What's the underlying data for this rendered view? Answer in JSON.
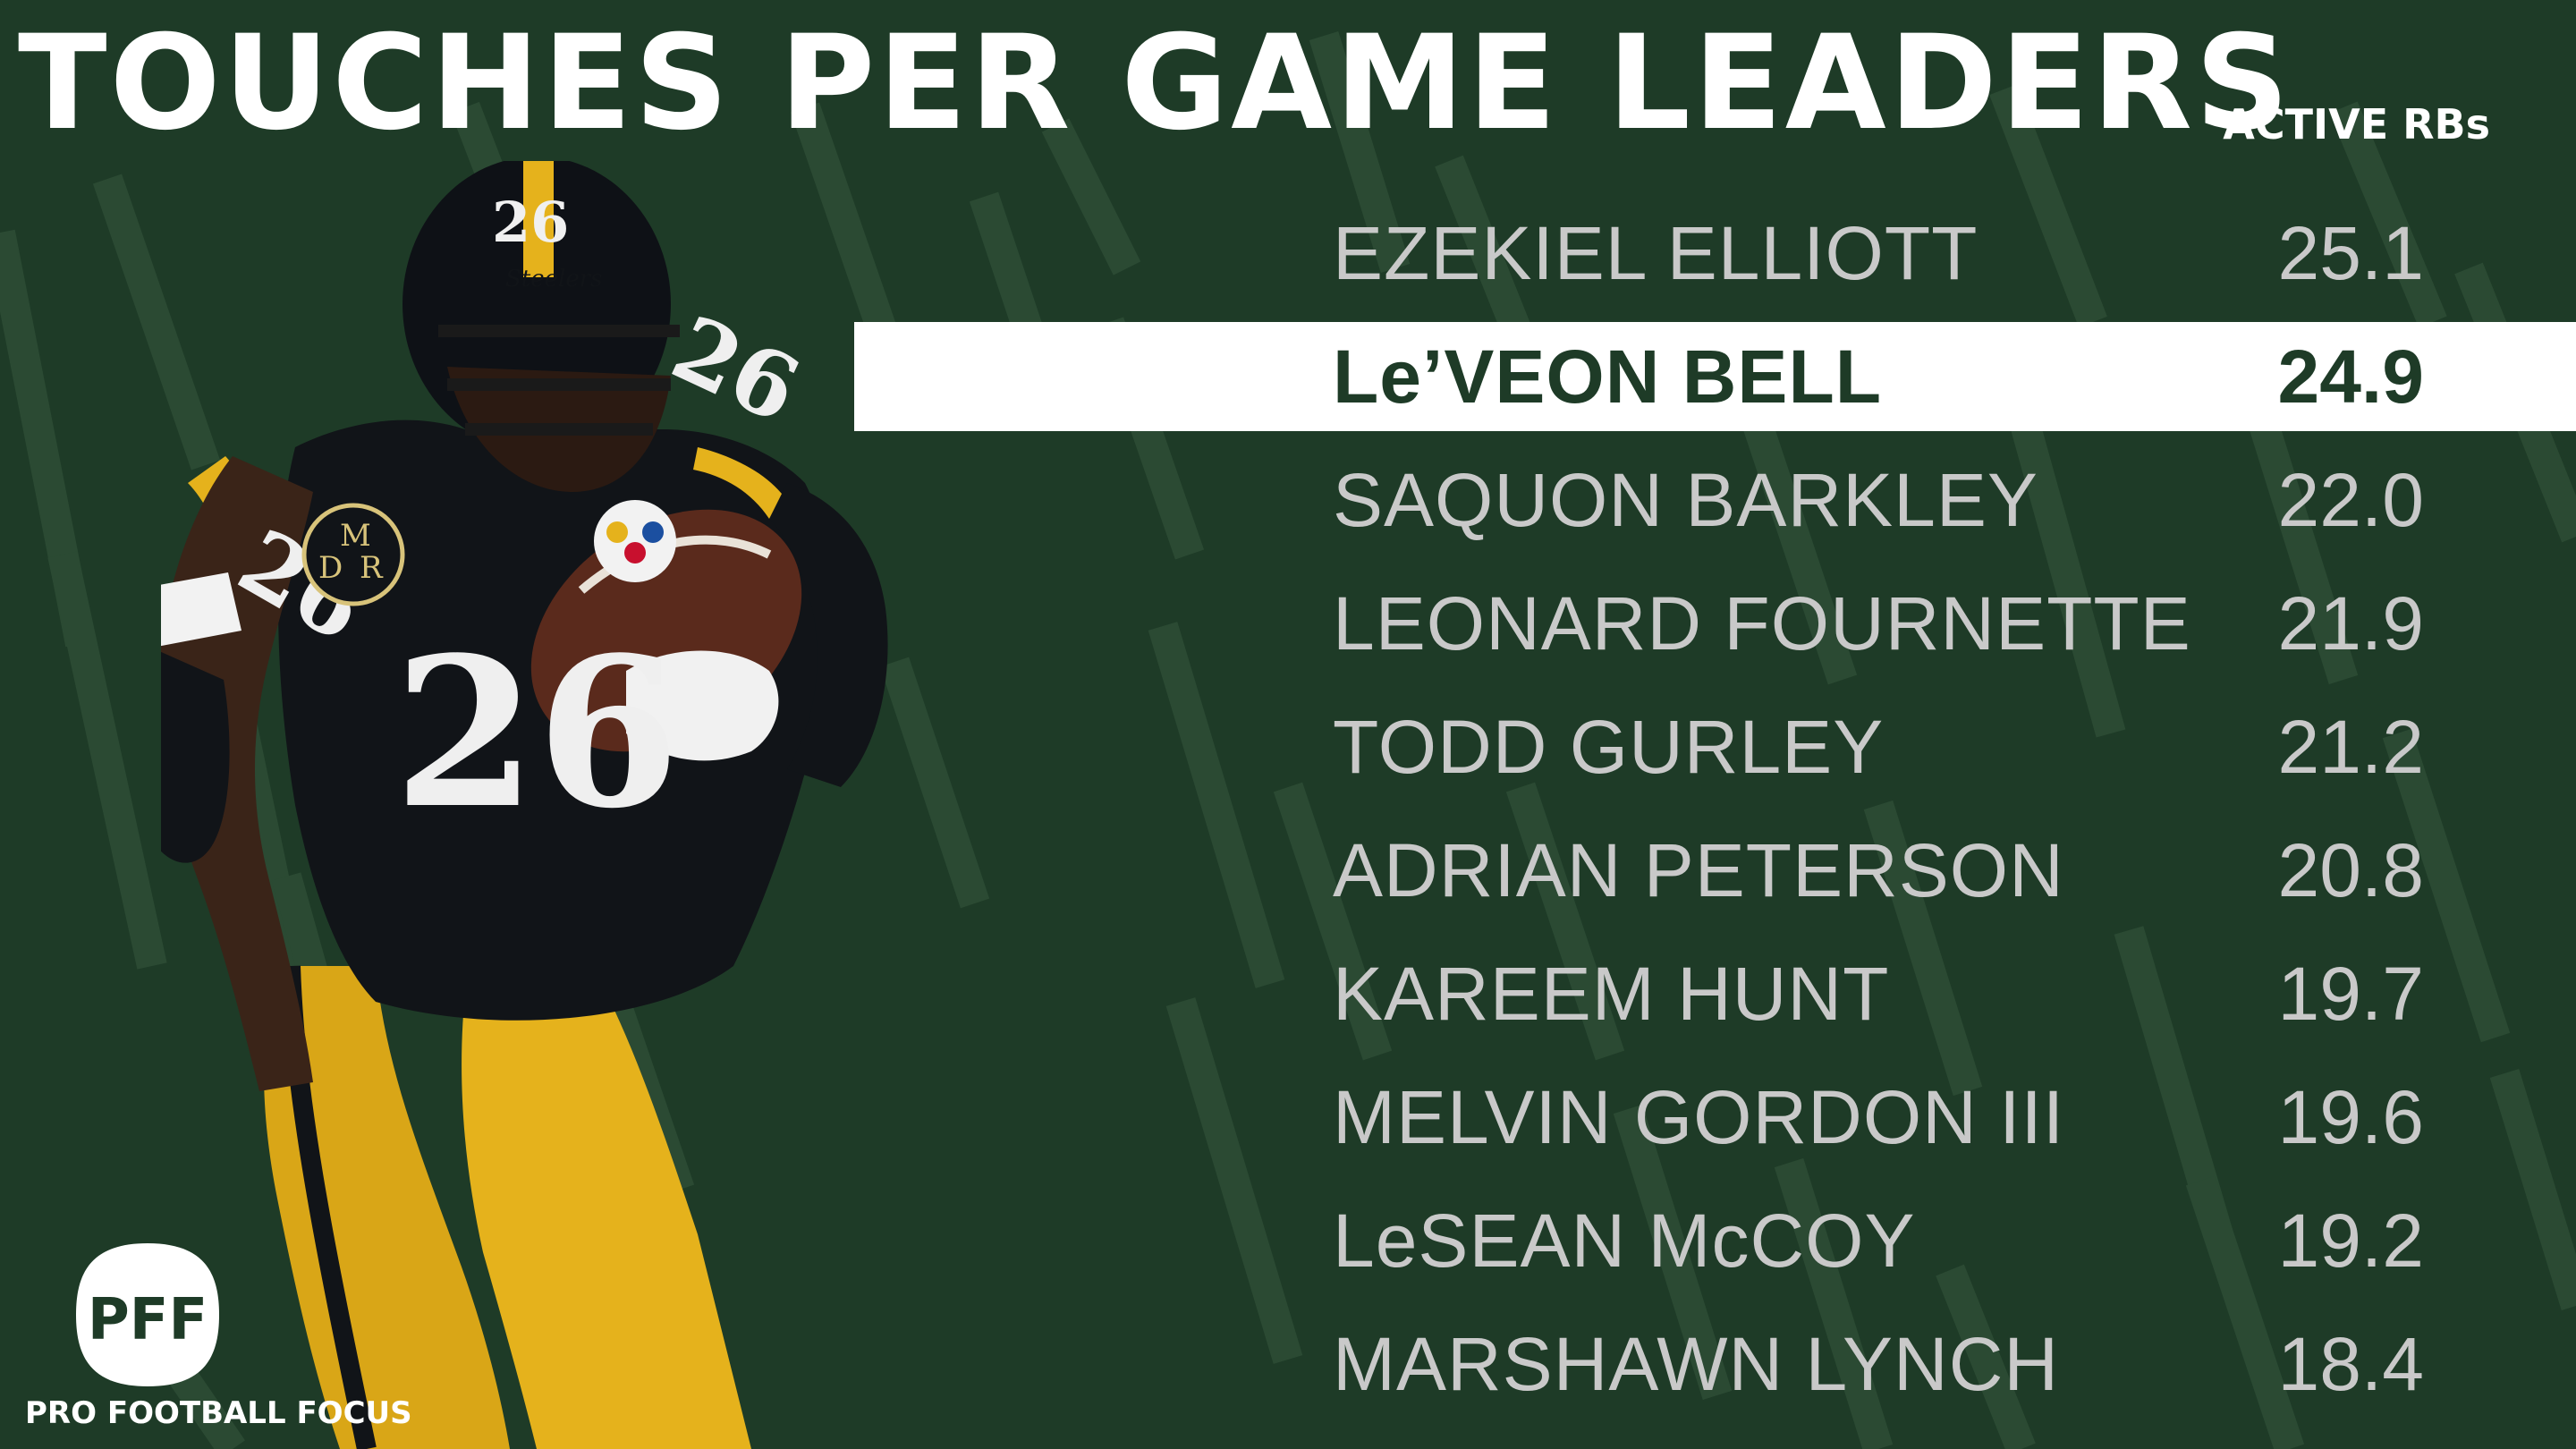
{
  "title": "TOUCHES PER GAME LEADERS",
  "subtitle": "ACTIVE RBs",
  "leaders": [
    {
      "name": "EZEKIEL ELLIOTT",
      "value": "25.1",
      "highlight": false
    },
    {
      "name": "Le’VEON BELL",
      "value": "24.9",
      "highlight": true
    },
    {
      "name": "SAQUON BARKLEY",
      "value": "22.0",
      "highlight": false
    },
    {
      "name": "LEONARD FOURNETTE",
      "value": "21.9",
      "highlight": false
    },
    {
      "name": "TODD GURLEY",
      "value": "21.2",
      "highlight": false
    },
    {
      "name": "ADRIAN PETERSON",
      "value": "20.8",
      "highlight": false
    },
    {
      "name": "KAREEM HUNT",
      "value": "19.7",
      "highlight": false
    },
    {
      "name": "MELVIN GORDON III",
      "value": "19.6",
      "highlight": false
    },
    {
      "name": "LeSEAN McCOY",
      "value": "19.2",
      "highlight": false
    },
    {
      "name": "MARSHAWN LYNCH",
      "value": "18.4",
      "highlight": false
    }
  ],
  "player": {
    "jersey_number": "26",
    "helmet_number": "26",
    "helmet_brand": "Steelers",
    "patch_text": [
      "M",
      "D",
      "R"
    ]
  },
  "logo": {
    "mark": "PFF",
    "caption": "PRO FOOTBALL FOCUS"
  },
  "colors": {
    "background": "#1e3b27",
    "streak": "#2b4a33",
    "highlight_bar": "#ffffff",
    "text_primary": "#ffffff",
    "text_secondary": "#c9c9c9",
    "jersey_black": "#111418",
    "pants_gold": "#e5b21c"
  }
}
